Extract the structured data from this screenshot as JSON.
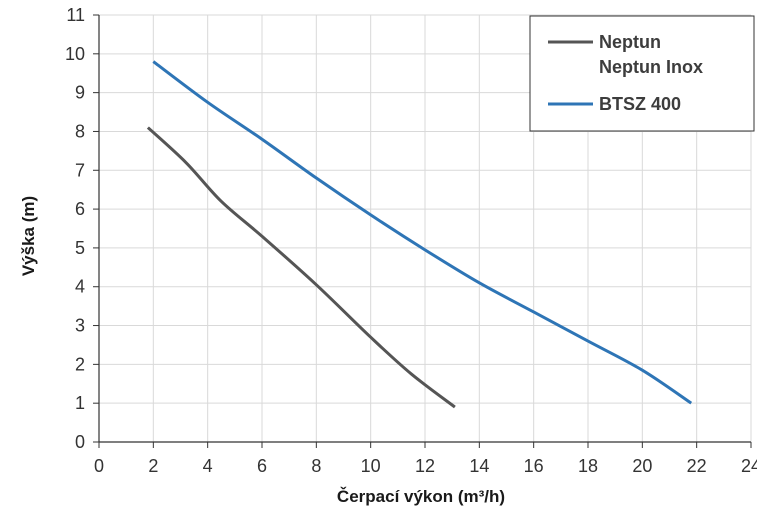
{
  "chart_data": {
    "type": "line",
    "xlabel": "Čerpací výkon (m³/h)",
    "ylabel": "Výška (m)",
    "xlim": [
      0,
      24
    ],
    "ylim": [
      0,
      11
    ],
    "x_ticks": [
      "0",
      "2",
      "4",
      "6",
      "8",
      "10",
      "12",
      "14",
      "16",
      "18",
      "20",
      "22",
      "24"
    ],
    "y_ticks": [
      "0",
      "1",
      "2",
      "3",
      "4",
      "5",
      "6",
      "7",
      "8",
      "9",
      "10",
      "11"
    ],
    "grid": true,
    "legend_position": "top-right",
    "series": [
      {
        "name": "Neptun",
        "name_line2": "Neptun Inox",
        "color": "#555555",
        "points": [
          {
            "x": 1.8,
            "y": 8.1
          },
          {
            "x": 3.2,
            "y": 7.2
          },
          {
            "x": 4.5,
            "y": 6.2
          },
          {
            "x": 6.0,
            "y": 5.3
          },
          {
            "x": 8.0,
            "y": 4.05
          },
          {
            "x": 10.0,
            "y": 2.7
          },
          {
            "x": 11.5,
            "y": 1.75
          },
          {
            "x": 13.1,
            "y": 0.9
          }
        ]
      },
      {
        "name": "BTSZ 400",
        "color": "#2e75b6",
        "points": [
          {
            "x": 2.0,
            "y": 9.8
          },
          {
            "x": 4.0,
            "y": 8.75
          },
          {
            "x": 6.0,
            "y": 7.8
          },
          {
            "x": 8.0,
            "y": 6.8
          },
          {
            "x": 10.0,
            "y": 5.85
          },
          {
            "x": 12.0,
            "y": 4.95
          },
          {
            "x": 14.0,
            "y": 4.1
          },
          {
            "x": 16.0,
            "y": 3.35
          },
          {
            "x": 18.0,
            "y": 2.6
          },
          {
            "x": 20.0,
            "y": 1.85
          },
          {
            "x": 21.8,
            "y": 1.0
          }
        ]
      }
    ]
  }
}
